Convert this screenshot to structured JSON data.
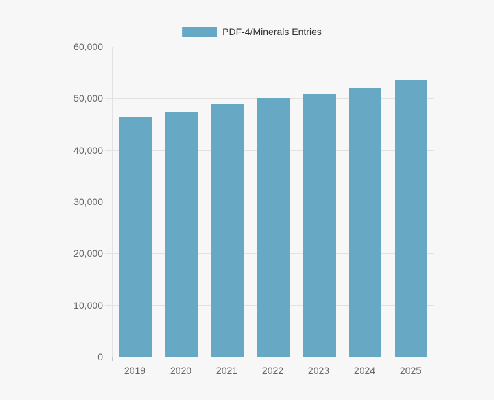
{
  "chart_data": {
    "type": "bar",
    "title": "",
    "xlabel": "",
    "ylabel": "",
    "legend": "PDF-4/Minerals Entries",
    "legend_position": "top-center",
    "grid": true,
    "categories": [
      "2019",
      "2020",
      "2021",
      "2022",
      "2023",
      "2024",
      "2025"
    ],
    "series": [
      {
        "name": "PDF-4/Minerals Entries",
        "values": [
          46300,
          47400,
          49000,
          50000,
          50900,
          52000,
          53500
        ]
      }
    ],
    "ylim": [
      0,
      60000
    ],
    "yticks": [
      {
        "v": 0,
        "label": "0"
      },
      {
        "v": 10000,
        "label": "10,000"
      },
      {
        "v": 20000,
        "label": "20,000"
      },
      {
        "v": 30000,
        "label": "30,000"
      },
      {
        "v": 40000,
        "label": "40,000"
      },
      {
        "v": 50000,
        "label": "50,000"
      },
      {
        "v": 60000,
        "label": "60,000"
      }
    ],
    "colors": {
      "bar": "#67a8c5",
      "grid": "#e2e2e2",
      "axis": "#c4c4c4",
      "tick_label": "#666666",
      "legend_label": "#333333",
      "background": "#f7f7f7"
    }
  }
}
